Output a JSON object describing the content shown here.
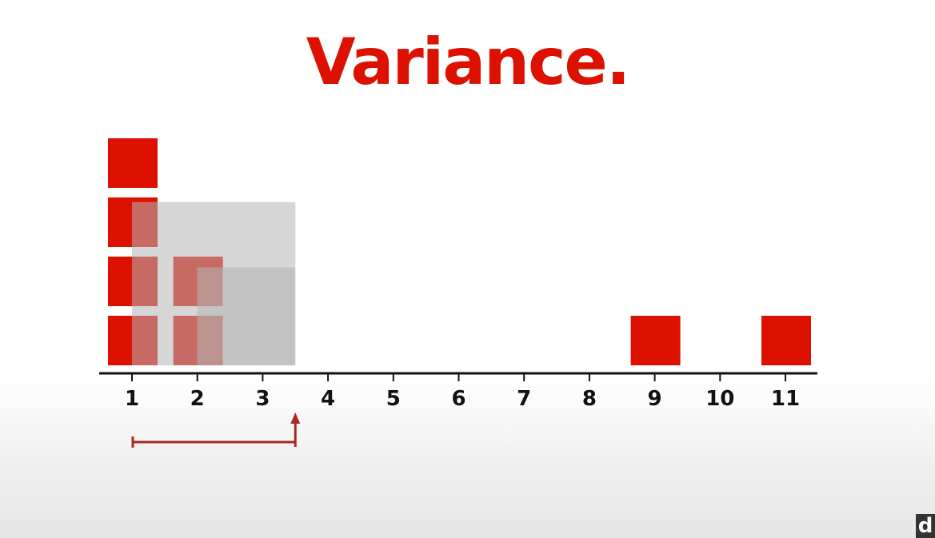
{
  "title": "Variance.",
  "colors": {
    "accent": "#dd1100",
    "axis": "#111111",
    "deviation_square": "#b4b4b4",
    "arrow": "#a82823"
  },
  "number_line": {
    "ticks": [
      "1",
      "2",
      "3",
      "4",
      "5",
      "6",
      "7",
      "8",
      "9",
      "10",
      "11"
    ]
  },
  "data_points": [
    1,
    1,
    1,
    1,
    2,
    2,
    9,
    11
  ],
  "mean": 3.5,
  "deviation_squares_from_values": [
    1,
    2
  ],
  "logo": {
    "text": "d",
    "icon": "brand-logo-icon"
  }
}
